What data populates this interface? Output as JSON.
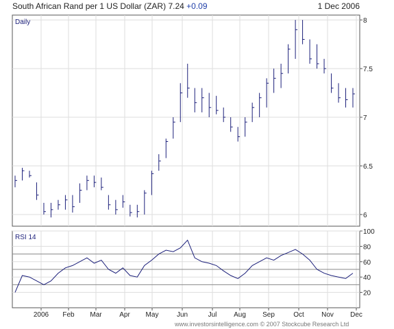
{
  "header": {
    "instrument": "South African Rand per 1 US Dollar (ZAR)",
    "price": "7.24",
    "change": "+0.09",
    "date": "1 Dec 2006"
  },
  "footer": {
    "copyright": "www.investorsintelligence.com  © 2007 Stockcube Research Ltd"
  },
  "colors": {
    "series": "#1b1f7a",
    "grid": "#dddddd",
    "frame": "#555555",
    "rsi_levels": "#888888"
  },
  "chart_data": [
    {
      "type": "ohlc",
      "title": "Daily",
      "ylim": [
        5.88,
        8.05
      ],
      "yticks": [
        6,
        6.5,
        7,
        7.5,
        8
      ],
      "ytick_labels": [
        "6",
        "6.5",
        "7",
        "7.5",
        "8"
      ],
      "xtick_labels": [
        "2006",
        "Feb",
        "Mar",
        "Apr",
        "May",
        "Jun",
        "Jul",
        "Aug",
        "Sep",
        "Oct",
        "Nov",
        "Dec"
      ],
      "grid": true,
      "series": [
        {
          "x": [
            "2006-01-02",
            "2006-01-09",
            "2006-01-16",
            "2006-01-23",
            "2006-01-30",
            "2006-02-06",
            "2006-02-13",
            "2006-02-20",
            "2006-02-27",
            "2006-03-06",
            "2006-03-13",
            "2006-03-20",
            "2006-03-27",
            "2006-04-03",
            "2006-04-10",
            "2006-04-17",
            "2006-04-24",
            "2006-05-01",
            "2006-05-08",
            "2006-05-15",
            "2006-05-22",
            "2006-05-29",
            "2006-06-05",
            "2006-06-12",
            "2006-06-19",
            "2006-06-26",
            "2006-07-03",
            "2006-07-10",
            "2006-07-17",
            "2006-07-24",
            "2006-07-31",
            "2006-08-07",
            "2006-08-14",
            "2006-08-21",
            "2006-08-28",
            "2006-09-04",
            "2006-09-11",
            "2006-09-18",
            "2006-09-25",
            "2006-10-02",
            "2006-10-09",
            "2006-10-16",
            "2006-10-23",
            "2006-10-30",
            "2006-11-06",
            "2006-11-13",
            "2006-11-20",
            "2006-11-27"
          ],
          "low": [
            6.28,
            6.35,
            6.38,
            6.15,
            6.0,
            5.97,
            6.05,
            6.05,
            6.02,
            6.12,
            6.25,
            6.28,
            6.25,
            6.05,
            6.0,
            6.07,
            5.98,
            5.97,
            6.0,
            6.2,
            6.45,
            6.58,
            6.78,
            6.95,
            7.2,
            7.05,
            7.05,
            7.0,
            7.03,
            6.95,
            6.85,
            6.75,
            6.8,
            6.95,
            7.0,
            7.1,
            7.25,
            7.3,
            7.45,
            7.6,
            7.75,
            7.55,
            7.5,
            7.45,
            7.25,
            7.15,
            7.1,
            7.1
          ],
          "high": [
            6.4,
            6.48,
            6.45,
            6.33,
            6.12,
            6.12,
            6.15,
            6.2,
            6.2,
            6.32,
            6.4,
            6.4,
            6.38,
            6.2,
            6.15,
            6.2,
            6.1,
            6.1,
            6.25,
            6.45,
            6.62,
            6.78,
            7.0,
            7.35,
            7.55,
            7.3,
            7.3,
            7.25,
            7.22,
            7.1,
            7.0,
            6.9,
            7.0,
            7.15,
            7.25,
            7.4,
            7.5,
            7.55,
            7.75,
            8.0,
            8.0,
            7.8,
            7.75,
            7.6,
            7.45,
            7.35,
            7.3,
            7.3
          ],
          "close": [
            6.35,
            6.45,
            6.4,
            6.2,
            6.03,
            6.05,
            6.1,
            6.15,
            6.08,
            6.25,
            6.35,
            6.33,
            6.28,
            6.1,
            6.05,
            6.13,
            6.02,
            6.03,
            6.22,
            6.42,
            6.55,
            6.75,
            6.95,
            7.25,
            7.3,
            7.15,
            7.2,
            7.1,
            7.07,
            7.0,
            6.9,
            6.8,
            6.95,
            7.1,
            7.2,
            7.35,
            7.4,
            7.45,
            7.7,
            7.9,
            7.8,
            7.6,
            7.55,
            7.5,
            7.3,
            7.2,
            7.18,
            7.24
          ]
        }
      ]
    },
    {
      "type": "line",
      "title": "RSI 14",
      "ylim": [
        0,
        100
      ],
      "yticks": [
        20,
        40,
        60,
        80,
        100
      ],
      "ytick_labels": [
        "20",
        "40",
        "60",
        "80",
        "100"
      ],
      "reference_lines": [
        30,
        50,
        70
      ],
      "xtick_labels": [
        "2006",
        "Feb",
        "Mar",
        "Apr",
        "May",
        "Jun",
        "Jul",
        "Aug",
        "Sep",
        "Oct",
        "Nov",
        "Dec"
      ],
      "grid": true,
      "series": [
        {
          "x": [
            "2006-01-02",
            "2006-01-09",
            "2006-01-16",
            "2006-01-23",
            "2006-01-30",
            "2006-02-06",
            "2006-02-13",
            "2006-02-20",
            "2006-02-27",
            "2006-03-06",
            "2006-03-13",
            "2006-03-20",
            "2006-03-27",
            "2006-04-03",
            "2006-04-10",
            "2006-04-17",
            "2006-04-24",
            "2006-05-01",
            "2006-05-08",
            "2006-05-15",
            "2006-05-22",
            "2006-05-29",
            "2006-06-05",
            "2006-06-12",
            "2006-06-19",
            "2006-06-26",
            "2006-07-03",
            "2006-07-10",
            "2006-07-17",
            "2006-07-24",
            "2006-07-31",
            "2006-08-07",
            "2006-08-14",
            "2006-08-21",
            "2006-08-28",
            "2006-09-04",
            "2006-09-11",
            "2006-09-18",
            "2006-09-25",
            "2006-10-02",
            "2006-10-09",
            "2006-10-16",
            "2006-10-23",
            "2006-10-30",
            "2006-11-06",
            "2006-11-13",
            "2006-11-20",
            "2006-11-27"
          ],
          "values": [
            20,
            42,
            40,
            35,
            30,
            35,
            45,
            52,
            55,
            60,
            65,
            58,
            62,
            50,
            45,
            52,
            42,
            40,
            55,
            62,
            70,
            75,
            73,
            78,
            88,
            65,
            60,
            58,
            55,
            48,
            42,
            38,
            45,
            55,
            60,
            65,
            62,
            68,
            72,
            76,
            70,
            62,
            50,
            45,
            42,
            40,
            38,
            45
          ]
        }
      ]
    }
  ]
}
